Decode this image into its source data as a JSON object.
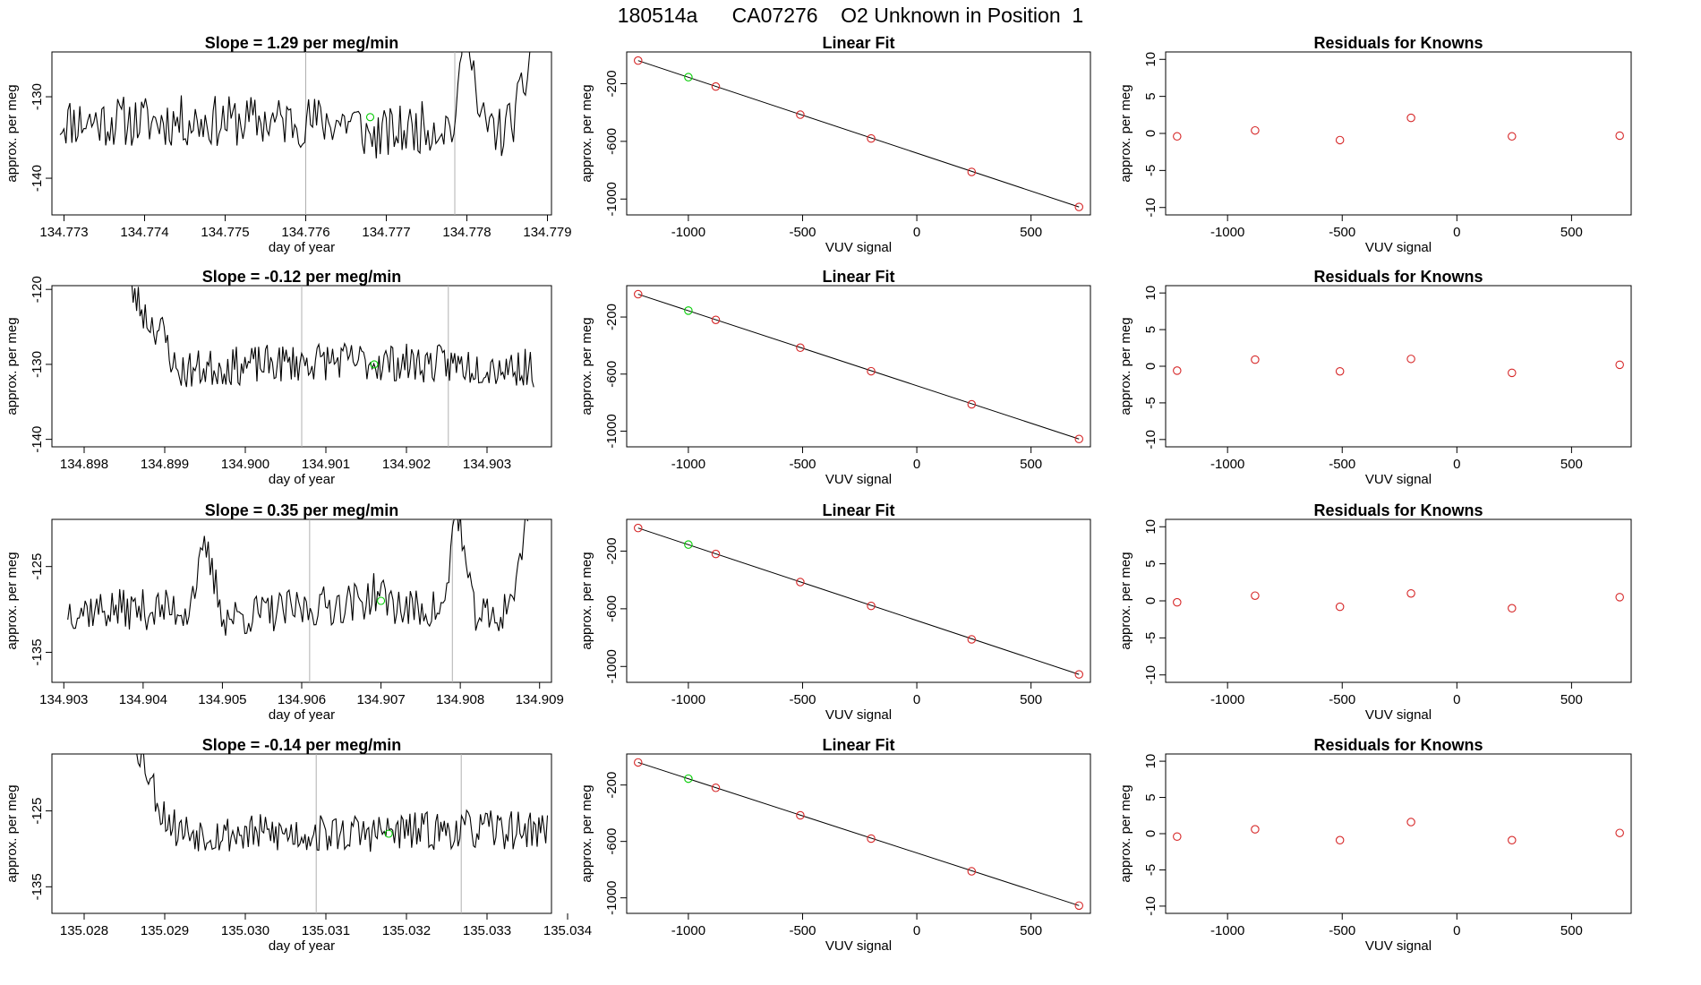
{
  "figure_title": "180514a      CA07276    O2 Unknown in Position  1",
  "colors": {
    "line": "#000000",
    "point": "#d62728",
    "highlight": "#00cc00",
    "guide": "#b0b0b0"
  },
  "chart_data": [
    {
      "type": "line",
      "row": 1,
      "title": "Slope =  1.29  per meg/min",
      "xlabel": "day of year",
      "ylabel": "approx. per meg",
      "xlim": [
        134.77285,
        134.77905
      ],
      "ylim": [
        -144.5,
        -124.5
      ],
      "xticks": [
        134.773,
        134.774,
        134.775,
        134.776,
        134.777,
        134.778,
        134.779
      ],
      "xtick_labels": [
        "134.773",
        "134.774",
        "134.775",
        "134.776",
        "134.777",
        "134.778",
        "134.779"
      ],
      "yticks": [
        -140,
        -130
      ],
      "ytick_labels": [
        "-140",
        "-130"
      ],
      "x_start": 134.77295,
      "x_end": 134.77885,
      "noise_amp": 3.2,
      "seed": 11,
      "profile": [
        [
          0,
          -133
        ],
        [
          0.62,
          -133
        ],
        [
          0.65,
          -135
        ],
        [
          0.78,
          -133.5
        ],
        [
          0.835,
          -133.5
        ],
        [
          0.85,
          -118
        ],
        [
          0.865,
          -123
        ],
        [
          0.88,
          -133
        ],
        [
          0.93,
          -134.5
        ],
        [
          0.96,
          -132
        ],
        [
          0.98,
          -128
        ],
        [
          1.0,
          -120
        ]
      ],
      "guides": [
        134.776,
        134.77785
      ],
      "marker": {
        "x": 134.7768,
        "y": -132.5
      }
    },
    {
      "type": "scatter_fit",
      "row": 1,
      "title": "Linear Fit",
      "xlabel": "VUV signal",
      "ylabel": "approx. per meg",
      "xlim": [
        -1270,
        760
      ],
      "ylim": [
        -1110,
        20
      ],
      "xticks": [
        -1000,
        -500,
        0,
        500
      ],
      "xtick_labels": [
        "-1000",
        "-500",
        "0",
        "500"
      ],
      "yticks": [
        -1000,
        -600,
        -200
      ],
      "ytick_labels": [
        "-1000",
        "-600",
        "-200"
      ],
      "fit_line": {
        "x0": -1220,
        "y0": -40,
        "x1": 710,
        "y1": -1055
      },
      "points": [
        [
          -1220,
          -40
        ],
        [
          -1000,
          -155
        ],
        [
          -880,
          -220
        ],
        [
          -510,
          -415
        ],
        [
          -200,
          -580
        ],
        [
          240,
          -812
        ],
        [
          710,
          -1055
        ]
      ],
      "highlight_index": 1
    },
    {
      "type": "scatter",
      "row": 1,
      "title": "Residuals for Knowns",
      "xlabel": "VUV signal",
      "ylabel": "approx. per meg",
      "xlim": [
        -1270,
        760
      ],
      "ylim": [
        -11,
        11
      ],
      "xticks": [
        -1000,
        -500,
        0,
        500
      ],
      "xtick_labels": [
        "-1000",
        "-500",
        "0",
        "500"
      ],
      "yticks": [
        -10,
        -5,
        0,
        5,
        10
      ],
      "ytick_labels": [
        "-10",
        "-5",
        "0",
        "5",
        "10"
      ],
      "points": [
        [
          -1220,
          -0.4
        ],
        [
          -880,
          0.4
        ],
        [
          -510,
          -0.9
        ],
        [
          -200,
          2.1
        ],
        [
          240,
          -0.4
        ],
        [
          710,
          -0.3
        ]
      ]
    },
    {
      "type": "line",
      "row": 2,
      "title": "Slope =  -0.12  per meg/min",
      "xlabel": "day of year",
      "ylabel": "approx. per meg",
      "xlim": [
        134.8976,
        134.9038
      ],
      "ylim": [
        -141,
        -119.5
      ],
      "xticks": [
        134.898,
        134.899,
        134.9,
        134.901,
        134.902,
        134.903
      ],
      "xtick_labels": [
        "134.898",
        "134.899",
        "134.900",
        "134.901",
        "134.902",
        "134.903"
      ],
      "yticks": [
        -140,
        -130,
        -120
      ],
      "ytick_labels": [
        "-140",
        "-130",
        "-120"
      ],
      "x_start": 134.89848,
      "x_end": 134.90358,
      "noise_amp": 2.6,
      "seed": 23,
      "profile": [
        [
          0,
          -118
        ],
        [
          0.03,
          -121
        ],
        [
          0.06,
          -124
        ],
        [
          0.1,
          -126
        ],
        [
          0.13,
          -131
        ],
        [
          0.2,
          -130.5
        ],
        [
          0.5,
          -129.5
        ],
        [
          0.8,
          -130
        ],
        [
          1.0,
          -130.5
        ]
      ],
      "guides": [
        134.9007,
        134.90252
      ],
      "marker": {
        "x": 134.9016,
        "y": -130
      }
    },
    {
      "type": "scatter_fit",
      "row": 2,
      "title": "Linear Fit",
      "xlabel": "VUV signal",
      "ylabel": "approx. per meg",
      "xlim": [
        -1270,
        760
      ],
      "ylim": [
        -1110,
        20
      ],
      "xticks": [
        -1000,
        -500,
        0,
        500
      ],
      "xtick_labels": [
        "-1000",
        "-500",
        "0",
        "500"
      ],
      "yticks": [
        -1000,
        -600,
        -200
      ],
      "ytick_labels": [
        "-1000",
        "-600",
        "-200"
      ],
      "fit_line": {
        "x0": -1220,
        "y0": -40,
        "x1": 710,
        "y1": -1055
      },
      "points": [
        [
          -1220,
          -40
        ],
        [
          -1000,
          -155
        ],
        [
          -880,
          -220
        ],
        [
          -510,
          -415
        ],
        [
          -200,
          -580
        ],
        [
          240,
          -812
        ],
        [
          710,
          -1055
        ]
      ],
      "highlight_index": 1
    },
    {
      "type": "scatter",
      "row": 2,
      "title": "Residuals for Knowns",
      "xlabel": "VUV signal",
      "ylabel": "approx. per meg",
      "xlim": [
        -1270,
        760
      ],
      "ylim": [
        -11,
        11
      ],
      "xticks": [
        -1000,
        -500,
        0,
        500
      ],
      "xtick_labels": [
        "-1000",
        "-500",
        "0",
        "500"
      ],
      "yticks": [
        -10,
        -5,
        0,
        5,
        10
      ],
      "ytick_labels": [
        "-10",
        "-5",
        "0",
        "5",
        "10"
      ],
      "points": [
        [
          -1220,
          -0.6
        ],
        [
          -880,
          0.9
        ],
        [
          -510,
          -0.7
        ],
        [
          -200,
          1.0
        ],
        [
          240,
          -0.9
        ],
        [
          710,
          0.2
        ]
      ]
    },
    {
      "type": "line",
      "row": 3,
      "title": "Slope =  0.35  per meg/min",
      "xlabel": "day of year",
      "ylabel": "approx. per meg",
      "xlim": [
        134.90285,
        134.90915
      ],
      "ylim": [
        -138.5,
        -119.5
      ],
      "xticks": [
        134.903,
        134.904,
        134.905,
        134.906,
        134.907,
        134.908,
        134.909
      ],
      "xtick_labels": [
        "134.903",
        "134.904",
        "134.905",
        "134.906",
        "134.907",
        "134.908",
        "134.909"
      ],
      "yticks": [
        -135,
        -125
      ],
      "ytick_labels": [
        "-135",
        "-125"
      ],
      "x_start": 134.90305,
      "x_end": 134.90885,
      "noise_amp": 2.4,
      "seed": 37,
      "profile": [
        [
          0,
          -130
        ],
        [
          0.26,
          -130
        ],
        [
          0.3,
          -123
        ],
        [
          0.34,
          -131
        ],
        [
          0.5,
          -130
        ],
        [
          0.64,
          -129
        ],
        [
          0.67,
          -128
        ],
        [
          0.73,
          -130
        ],
        [
          0.82,
          -130
        ],
        [
          0.845,
          -117
        ],
        [
          0.86,
          -123
        ],
        [
          0.88,
          -130
        ],
        [
          0.93,
          -131.5
        ],
        [
          0.96,
          -129
        ],
        [
          0.98,
          -126
        ],
        [
          1.0,
          -118
        ]
      ],
      "guides": [
        134.9061,
        134.9079
      ],
      "marker": {
        "x": 134.907,
        "y": -129
      }
    },
    {
      "type": "scatter_fit",
      "row": 3,
      "title": "Linear Fit",
      "xlabel": "VUV signal",
      "ylabel": "approx. per meg",
      "xlim": [
        -1270,
        760
      ],
      "ylim": [
        -1110,
        20
      ],
      "xticks": [
        -1000,
        -500,
        0,
        500
      ],
      "xtick_labels": [
        "-1000",
        "-500",
        "0",
        "500"
      ],
      "yticks": [
        -1000,
        -600,
        -200
      ],
      "ytick_labels": [
        "-1000",
        "-600",
        "-200"
      ],
      "fit_line": {
        "x0": -1220,
        "y0": -40,
        "x1": 710,
        "y1": -1055
      },
      "points": [
        [
          -1220,
          -40
        ],
        [
          -1000,
          -155
        ],
        [
          -880,
          -220
        ],
        [
          -510,
          -415
        ],
        [
          -200,
          -580
        ],
        [
          240,
          -812
        ],
        [
          710,
          -1055
        ]
      ],
      "highlight_index": 1
    },
    {
      "type": "scatter",
      "row": 3,
      "title": "Residuals for Knowns",
      "xlabel": "VUV signal",
      "ylabel": "approx. per meg",
      "xlim": [
        -1270,
        760
      ],
      "ylim": [
        -11,
        11
      ],
      "xticks": [
        -1000,
        -500,
        0,
        500
      ],
      "xtick_labels": [
        "-1000",
        "-500",
        "0",
        "500"
      ],
      "yticks": [
        -10,
        -5,
        0,
        5,
        10
      ],
      "ytick_labels": [
        "-10",
        "-5",
        "0",
        "5",
        "10"
      ],
      "points": [
        [
          -1220,
          -0.2
        ],
        [
          -880,
          0.7
        ],
        [
          -510,
          -0.8
        ],
        [
          -200,
          1.0
        ],
        [
          240,
          -1.0
        ],
        [
          710,
          0.5
        ]
      ]
    },
    {
      "type": "line",
      "row": 4,
      "title": "Slope =  -0.14  per meg/min",
      "xlabel": "day of year",
      "ylabel": "approx. per meg",
      "xlim": [
        135.0276,
        135.0338
      ],
      "ylim": [
        -138.5,
        -117.5
      ],
      "xticks": [
        135.028,
        135.029,
        135.03,
        135.031,
        135.032,
        135.033,
        135.034
      ],
      "xtick_labels": [
        "135.028",
        "135.029",
        "135.030",
        "135.031",
        "135.032",
        "135.033",
        "135.034"
      ],
      "yticks": [
        -135,
        -125
      ],
      "ytick_labels": [
        "-135",
        "-125"
      ],
      "x_start": 135.02865,
      "x_end": 135.03375,
      "noise_amp": 2.6,
      "seed": 53,
      "profile": [
        [
          0,
          -116
        ],
        [
          0.03,
          -120
        ],
        [
          0.06,
          -125
        ],
        [
          0.1,
          -127.5
        ],
        [
          0.2,
          -128
        ],
        [
          0.5,
          -128
        ],
        [
          0.8,
          -127.5
        ],
        [
          1.0,
          -127.5
        ]
      ],
      "guides": [
        135.03088,
        135.03268
      ],
      "marker": {
        "x": 135.03178,
        "y": -128
      }
    },
    {
      "type": "scatter_fit",
      "row": 4,
      "title": "Linear Fit",
      "xlabel": "VUV signal",
      "ylabel": "approx. per meg",
      "xlim": [
        -1270,
        760
      ],
      "ylim": [
        -1110,
        20
      ],
      "xticks": [
        -1000,
        -500,
        0,
        500
      ],
      "xtick_labels": [
        "-1000",
        "-500",
        "0",
        "500"
      ],
      "yticks": [
        -1000,
        -600,
        -200
      ],
      "ytick_labels": [
        "-1000",
        "-600",
        "-200"
      ],
      "fit_line": {
        "x0": -1220,
        "y0": -40,
        "x1": 710,
        "y1": -1055
      },
      "points": [
        [
          -1220,
          -40
        ],
        [
          -1000,
          -155
        ],
        [
          -880,
          -220
        ],
        [
          -510,
          -415
        ],
        [
          -200,
          -580
        ],
        [
          240,
          -812
        ],
        [
          710,
          -1055
        ]
      ],
      "highlight_index": 1
    },
    {
      "type": "scatter",
      "row": 4,
      "title": "Residuals for Knowns",
      "xlabel": "VUV signal",
      "ylabel": "approx. per meg",
      "xlim": [
        -1270,
        760
      ],
      "ylim": [
        -11,
        11
      ],
      "xticks": [
        -1000,
        -500,
        0,
        500
      ],
      "xtick_labels": [
        "-1000",
        "-500",
        "0",
        "500"
      ],
      "yticks": [
        -10,
        -5,
        0,
        5,
        10
      ],
      "ytick_labels": [
        "-10",
        "-5",
        "0",
        "5",
        "10"
      ],
      "points": [
        [
          -1220,
          -0.4
        ],
        [
          -880,
          0.6
        ],
        [
          -510,
          -0.9
        ],
        [
          -200,
          1.6
        ],
        [
          240,
          -0.9
        ],
        [
          710,
          0.1
        ]
      ]
    }
  ]
}
